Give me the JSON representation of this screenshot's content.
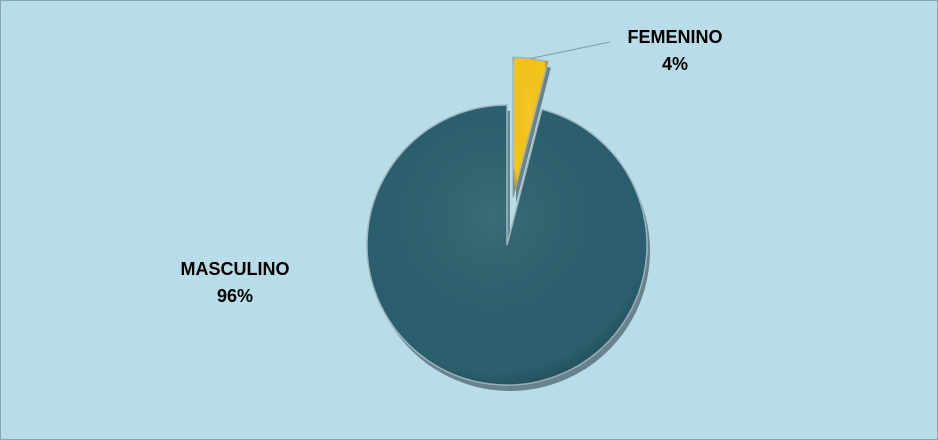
{
  "chart_data": {
    "type": "pie",
    "categories": [
      "MASCULINO",
      "FEMENINO"
    ],
    "values": [
      96,
      4
    ],
    "value_labels": [
      "96%",
      "4%"
    ],
    "colors": [
      "#2b5f6e",
      "#f5c518"
    ]
  }
}
